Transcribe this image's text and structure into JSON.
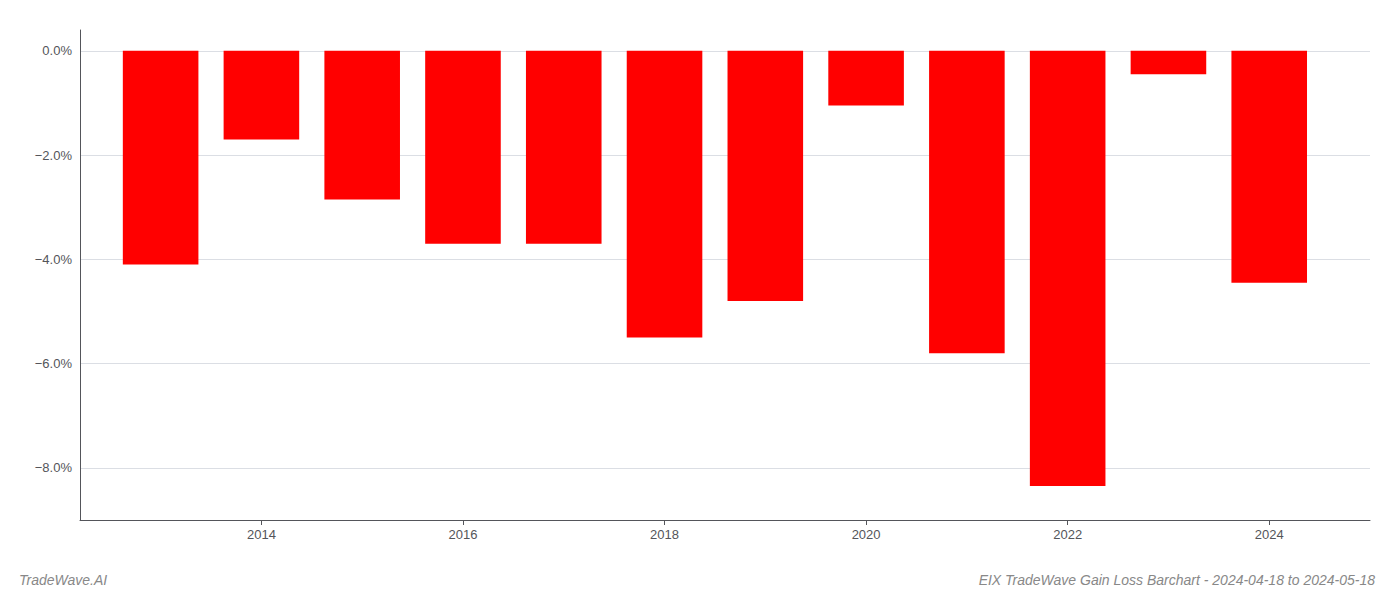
{
  "chart_data": {
    "type": "bar",
    "title": "EIX TradeWave Gain Loss Barchart - 2024-04-18 to 2024-05-18",
    "annotations": [
      "TradeWave.AI"
    ],
    "x": [
      2013,
      2014,
      2015,
      2016,
      2017,
      2018,
      2019,
      2020,
      2021,
      2022,
      2023,
      2024
    ],
    "values": [
      -4.1,
      -1.7,
      -2.85,
      -3.7,
      -3.7,
      -5.5,
      -4.8,
      -1.05,
      -5.8,
      -8.35,
      -0.45,
      -4.45
    ],
    "color": "#ff0000",
    "xlim": [
      2012.2,
      2025.0
    ],
    "xticks": [
      2014,
      2016,
      2018,
      2020,
      2022,
      2024
    ],
    "ylim": [
      -9.0,
      0.4
    ],
    "yticks": [
      {
        "value": 0.0,
        "label": "0.0%"
      },
      {
        "value": -2.0,
        "label": "−2.0%"
      },
      {
        "value": -4.0,
        "label": "−4.0%"
      },
      {
        "value": -6.0,
        "label": "−6.0%"
      },
      {
        "value": -8.0,
        "label": "−8.0%"
      }
    ],
    "grid": true
  }
}
